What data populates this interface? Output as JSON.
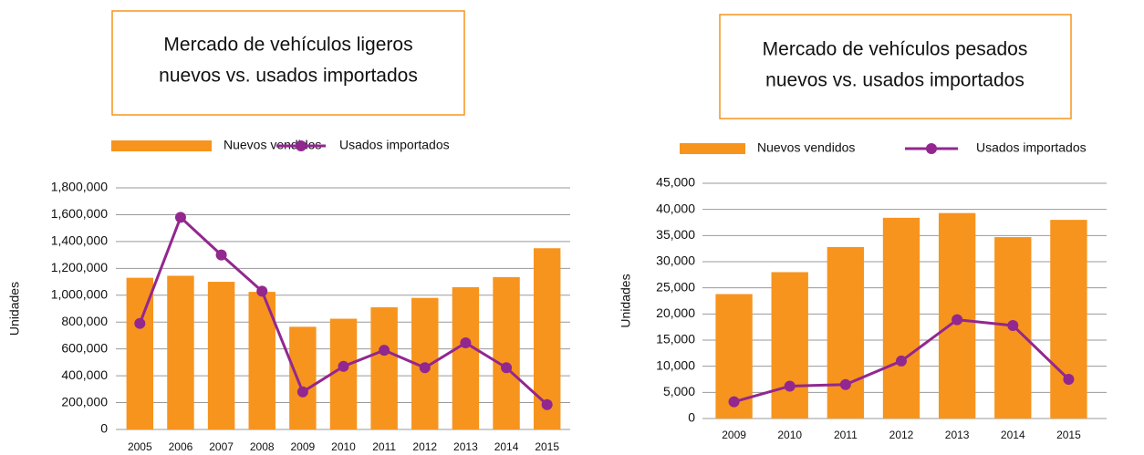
{
  "chart_data": [
    {
      "type": "combo",
      "title": "Mercado de vehículos ligeros",
      "subtitle": "nuevos vs. usados importados",
      "ylabel": "Unidades",
      "categories": [
        "2005",
        "2006",
        "2007",
        "2008",
        "2009",
        "2010",
        "2011",
        "2012",
        "2013",
        "2014",
        "2015"
      ],
      "series": [
        {
          "name": "Nuevos vendidos",
          "color": "#f7941d",
          "type": "bar",
          "values": [
            1130000,
            1145000,
            1100000,
            1025000,
            765000,
            825000,
            910000,
            980000,
            1060000,
            1135000,
            1350000
          ]
        },
        {
          "name": "Usados importados",
          "color": "#92278f",
          "type": "line",
          "values": [
            790000,
            1580000,
            1300000,
            1030000,
            280000,
            470000,
            590000,
            460000,
            645000,
            460000,
            185000
          ]
        }
      ],
      "ylim": [
        0,
        1800000
      ],
      "yticks": [
        0,
        {
          "value": 200000,
          "label": "200,000"
        },
        {
          "value": 400000,
          "label": "400,000"
        },
        {
          "value": 600000,
          "label": "600,000"
        },
        {
          "value": 800000,
          "label": "800,000"
        },
        {
          "value": 1000000,
          "label": "1,000,000"
        },
        {
          "value": 1200000,
          "label": "1,200,000"
        },
        {
          "value": 1400000,
          "label": "1,400,000"
        },
        {
          "value": 1600000,
          "label": "1,600,000"
        },
        {
          "value": 1800000,
          "label": "1,800,000"
        }
      ],
      "grid": true,
      "legend": "top"
    },
    {
      "type": "combo",
      "title": "Mercado de vehículos pesados",
      "subtitle": "nuevos vs. usados importados",
      "ylabel": "Unidades",
      "categories": [
        "2009",
        "2010",
        "2011",
        "2012",
        "2013",
        "2014",
        "2015"
      ],
      "series": [
        {
          "name": "Nuevos vendidos",
          "color": "#f7941d",
          "type": "bar",
          "values": [
            23800,
            28000,
            32800,
            38400,
            39300,
            34700,
            38000
          ]
        },
        {
          "name": "Usados importados",
          "color": "#92278f",
          "type": "line",
          "values": [
            3200,
            6200,
            6500,
            11000,
            18900,
            17800,
            7500
          ]
        }
      ],
      "ylim": [
        0,
        45000
      ],
      "yticks": [
        0,
        {
          "value": 5000,
          "label": "5,000"
        },
        {
          "value": 10000,
          "label": "10,000"
        },
        {
          "value": 15000,
          "label": "15,000"
        },
        {
          "value": 20000,
          "label": "20,000"
        },
        {
          "value": 25000,
          "label": "25,000"
        },
        {
          "value": 30000,
          "label": "30,000"
        },
        {
          "value": 35000,
          "label": "35,000"
        },
        {
          "value": 40000,
          "label": "40,000"
        },
        {
          "value": 45000,
          "label": "45,000"
        }
      ],
      "grid": true,
      "legend": "top"
    }
  ]
}
